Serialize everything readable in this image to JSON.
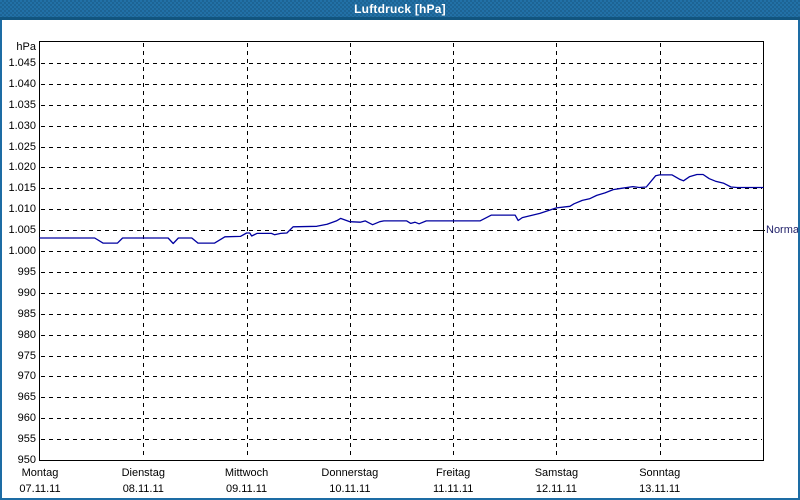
{
  "window": {
    "title": "Luftdruck [hPa]"
  },
  "colors": {
    "titlebar": "#2271a7",
    "window_border": "#1d6ca4",
    "line": "#0000a0",
    "grid": "#000000",
    "normal_text": "#22226a"
  },
  "chart_data": {
    "type": "line",
    "title": "Luftdruck [hPa]",
    "ylabel": "hPa",
    "xlabel": "",
    "ylim": [
      950,
      1050
    ],
    "grid": "dashed horizontal every 5 hPa, dashed vertical at day boundaries",
    "legend": "none",
    "yticks": [
      {
        "value": 1045,
        "label": "1.045"
      },
      {
        "value": 1040,
        "label": "1.040"
      },
      {
        "value": 1035,
        "label": "1.035"
      },
      {
        "value": 1030,
        "label": "1.030"
      },
      {
        "value": 1025,
        "label": "1.025"
      },
      {
        "value": 1020,
        "label": "1.020"
      },
      {
        "value": 1015,
        "label": "1.015"
      },
      {
        "value": 1010,
        "label": "1.010"
      },
      {
        "value": 1005,
        "label": "1.005"
      },
      {
        "value": 1000,
        "label": "1.000"
      },
      {
        "value": 995,
        "label": "995"
      },
      {
        "value": 990,
        "label": "990"
      },
      {
        "value": 985,
        "label": "985"
      },
      {
        "value": 980,
        "label": "980"
      },
      {
        "value": 975,
        "label": "975"
      },
      {
        "value": 970,
        "label": "970"
      },
      {
        "value": 965,
        "label": "965"
      },
      {
        "value": 960,
        "label": "960"
      },
      {
        "value": 955,
        "label": "955"
      },
      {
        "value": 950,
        "label": "950"
      }
    ],
    "days": [
      {
        "name": "Montag",
        "date": "07.11.11"
      },
      {
        "name": "Dienstag",
        "date": "08.11.11"
      },
      {
        "name": "Mittwoch",
        "date": "09.11.11"
      },
      {
        "name": "Donnerstag",
        "date": "10.11.11"
      },
      {
        "name": "Freitag",
        "date": "11.11.11"
      },
      {
        "name": "Samstag",
        "date": "12.11.11"
      },
      {
        "name": "Sonntag",
        "date": "13.11.11"
      }
    ],
    "normal_marker": {
      "label": "Normal",
      "value": 1005
    },
    "series": [
      {
        "name": "Luftdruck",
        "x_unit": "days since 07.11.11 00:00",
        "y_unit": "hPa",
        "points": [
          [
            0.0,
            1003.1
          ],
          [
            0.53,
            1003.1
          ],
          [
            0.61,
            1001.9
          ],
          [
            0.75,
            1001.9
          ],
          [
            0.8,
            1003.1
          ],
          [
            1.24,
            1003.1
          ],
          [
            1.29,
            1001.8
          ],
          [
            1.34,
            1003.1
          ],
          [
            1.47,
            1003.1
          ],
          [
            1.53,
            1001.9
          ],
          [
            1.69,
            1001.9
          ],
          [
            1.79,
            1003.4
          ],
          [
            1.94,
            1003.5
          ],
          [
            2.0,
            1004.3
          ],
          [
            2.03,
            1004.3
          ],
          [
            2.05,
            1003.6
          ],
          [
            2.1,
            1004.2
          ],
          [
            2.24,
            1004.2
          ],
          [
            2.27,
            1003.9
          ],
          [
            2.33,
            1004.2
          ],
          [
            2.39,
            1004.3
          ],
          [
            2.45,
            1005.8
          ],
          [
            2.68,
            1005.9
          ],
          [
            2.78,
            1006.4
          ],
          [
            2.87,
            1007.2
          ],
          [
            2.91,
            1007.8
          ],
          [
            3.0,
            1007.0
          ],
          [
            3.1,
            1006.9
          ],
          [
            3.15,
            1007.2
          ],
          [
            3.18,
            1006.8
          ],
          [
            3.22,
            1006.3
          ],
          [
            3.29,
            1007.0
          ],
          [
            3.33,
            1007.2
          ],
          [
            3.55,
            1007.2
          ],
          [
            3.59,
            1006.6
          ],
          [
            3.63,
            1006.9
          ],
          [
            3.67,
            1006.5
          ],
          [
            3.74,
            1007.2
          ],
          [
            4.0,
            1007.2
          ],
          [
            4.26,
            1007.2
          ],
          [
            4.37,
            1008.6
          ],
          [
            4.6,
            1008.6
          ],
          [
            4.63,
            1007.3
          ],
          [
            4.67,
            1008.0
          ],
          [
            4.84,
            1009.0
          ],
          [
            5.0,
            1010.3
          ],
          [
            5.13,
            1010.7
          ],
          [
            5.17,
            1011.3
          ],
          [
            5.25,
            1012.1
          ],
          [
            5.32,
            1012.5
          ],
          [
            5.39,
            1013.3
          ],
          [
            5.47,
            1013.9
          ],
          [
            5.55,
            1014.7
          ],
          [
            5.63,
            1015.0
          ],
          [
            5.74,
            1015.4
          ],
          [
            5.8,
            1015.2
          ],
          [
            5.87,
            1015.3
          ],
          [
            5.96,
            1018.0
          ],
          [
            6.0,
            1018.2
          ],
          [
            6.12,
            1018.2
          ],
          [
            6.19,
            1017.2
          ],
          [
            6.23,
            1016.8
          ],
          [
            6.29,
            1017.8
          ],
          [
            6.36,
            1018.3
          ],
          [
            6.42,
            1018.3
          ],
          [
            6.48,
            1017.3
          ],
          [
            6.54,
            1016.7
          ],
          [
            6.62,
            1016.2
          ],
          [
            6.69,
            1015.3
          ],
          [
            6.75,
            1015.2
          ],
          [
            7.0,
            1015.2
          ]
        ]
      }
    ]
  }
}
